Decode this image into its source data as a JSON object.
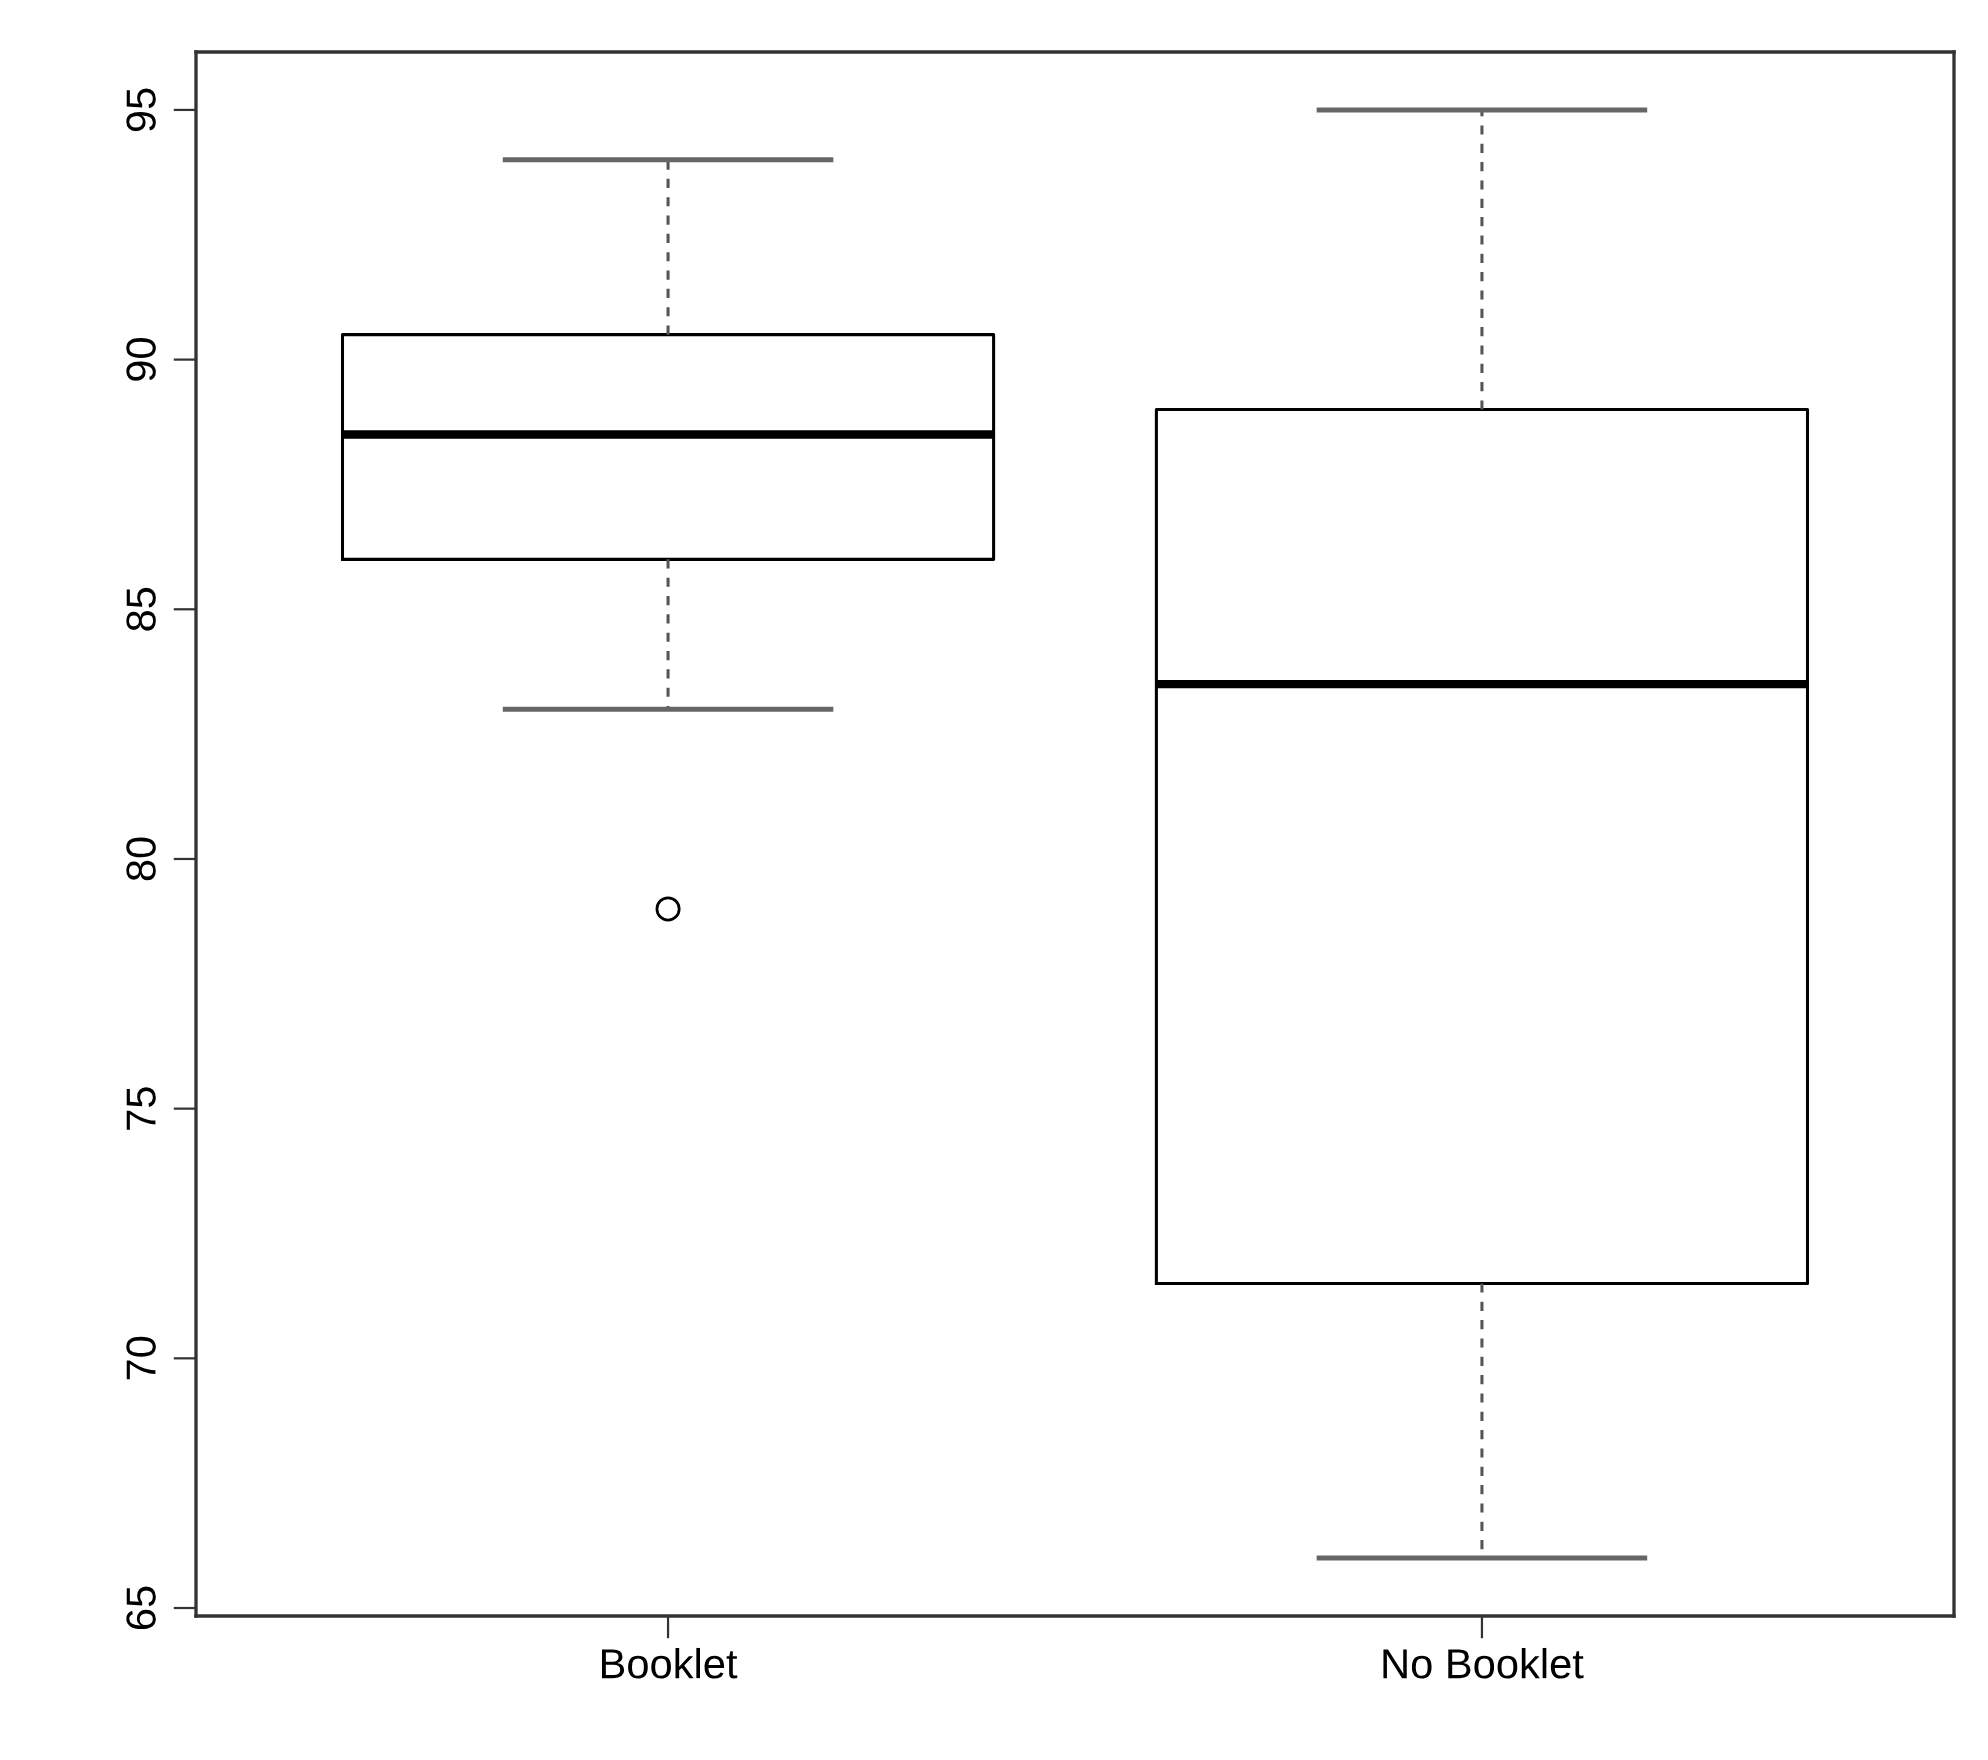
{
  "chart_data": {
    "type": "box",
    "categories": [
      "Booklet",
      "No Booklet"
    ],
    "boxes": [
      {
        "low": 83,
        "q1": 86,
        "median": 88.5,
        "q3": 90.5,
        "high": 94,
        "outliers": [
          79
        ]
      },
      {
        "low": 66,
        "q1": 71.5,
        "median": 83.5,
        "q3": 89,
        "high": 95
      }
    ],
    "ylim": [
      64.84,
      96.16
    ],
    "yticks": [
      65,
      70,
      75,
      80,
      85,
      90,
      95
    ],
    "grid": false,
    "legend": false
  }
}
